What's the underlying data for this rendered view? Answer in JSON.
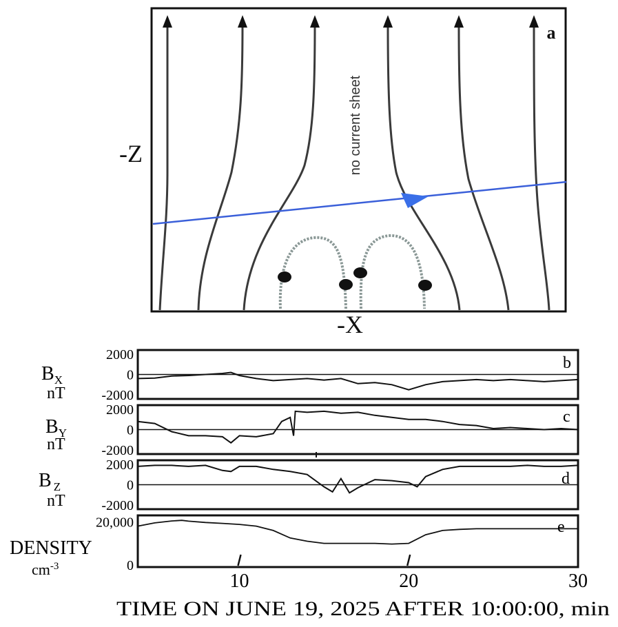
{
  "diagram": {
    "panel_letter": "a",
    "axis_vertical": "-Z",
    "axis_horizontal": "-X",
    "annotation": "no current sheet",
    "trajectory_color": "#3a5fd9"
  },
  "chart_data": [
    {
      "type": "line",
      "panel": "b",
      "ylabel_main": "B",
      "ylabel_sub": "X",
      "ylabel_unit": "nT",
      "ytick_labels": [
        "2000",
        "0",
        "-2000"
      ],
      "yticks": [
        2000,
        0,
        -2000
      ],
      "ylim": [
        -2400,
        2400
      ],
      "xlim": [
        4,
        30
      ],
      "zero_line": true,
      "series": [
        {
          "x": [
            4,
            5,
            6,
            7,
            8,
            9,
            9.5,
            10,
            11,
            12,
            13,
            14,
            15,
            16,
            17,
            18,
            19,
            20,
            21,
            22,
            23,
            24,
            25,
            26,
            27,
            28,
            29,
            30
          ],
          "values": [
            -400,
            -350,
            -150,
            -100,
            0,
            100,
            200,
            -100,
            -400,
            -600,
            -500,
            -400,
            -550,
            -400,
            -900,
            -800,
            -1000,
            -1500,
            -1000,
            -700,
            -600,
            -500,
            -600,
            -500,
            -600,
            -700,
            -600,
            -500
          ]
        }
      ]
    },
    {
      "type": "line",
      "panel": "c",
      "ylabel_main": "B",
      "ylabel_sub": "Y",
      "ylabel_unit": "nT",
      "ytick_labels": [
        "2000",
        "0",
        "-2000"
      ],
      "yticks": [
        2000,
        0,
        -2000
      ],
      "ylim": [
        -2400,
        2400
      ],
      "xlim": [
        4,
        30
      ],
      "zero_line": true,
      "series": [
        {
          "x": [
            4,
            5,
            6,
            7,
            8,
            9,
            9.5,
            10,
            11,
            12,
            12.5,
            13,
            13.2,
            13.3,
            14,
            15,
            16,
            17,
            18,
            19,
            20,
            21,
            22,
            23,
            24,
            25,
            26,
            27,
            28,
            29,
            30
          ],
          "values": [
            800,
            600,
            -200,
            -600,
            -600,
            -700,
            -1300,
            -600,
            -700,
            -400,
            800,
            1200,
            -600,
            1800,
            1700,
            1800,
            1600,
            1700,
            1400,
            1200,
            1000,
            1000,
            800,
            500,
            400,
            100,
            200,
            100,
            0,
            100,
            0
          ]
        }
      ]
    },
    {
      "type": "line",
      "panel": "d",
      "ylabel_main": "B",
      "ylabel_sub": "Z",
      "ylabel_unit": "nT",
      "ytick_labels": [
        "2000",
        "0",
        "-2000"
      ],
      "yticks": [
        2000,
        0,
        -2000
      ],
      "ylim": [
        -2400,
        2400
      ],
      "xlim": [
        4,
        30
      ],
      "zero_line": true,
      "series": [
        {
          "x": [
            4,
            5,
            6,
            7,
            8,
            9,
            9.5,
            10,
            11,
            12,
            13,
            14,
            15,
            15.5,
            16,
            16.5,
            17,
            18,
            19,
            20,
            20.5,
            21,
            22,
            23,
            24,
            25,
            26,
            27,
            28,
            29,
            30
          ],
          "values": [
            1800,
            1900,
            1900,
            1800,
            1900,
            1400,
            1300,
            1800,
            1800,
            1500,
            1300,
            1000,
            -200,
            -700,
            600,
            -800,
            -300,
            500,
            400,
            200,
            -200,
            800,
            1500,
            1800,
            1800,
            1800,
            1800,
            1900,
            1800,
            1800,
            1900
          ]
        }
      ]
    },
    {
      "type": "line",
      "panel": "e",
      "ylabel_main": "DENSITY",
      "ylabel_unit": "cm",
      "ylabel_unit_exp": "-3",
      "ytick_labels": [
        "20,000",
        "0"
      ],
      "yticks": [
        20000,
        0
      ],
      "ylim": [
        -1000,
        23000
      ],
      "xlim": [
        4,
        30
      ],
      "zero_line": false,
      "xtick_labels": [
        "10",
        "20",
        "30"
      ],
      "xticks": [
        10,
        20,
        30
      ],
      "xlabel": "TIME ON JUNE 19, 2025 AFTER 10:00:00, min",
      "series": [
        {
          "x": [
            4,
            5,
            6,
            6.6,
            7,
            8,
            9,
            10,
            11,
            12,
            13,
            14,
            15,
            16,
            17,
            18,
            19,
            20,
            21,
            22,
            23,
            24,
            25,
            26,
            27,
            28,
            29,
            30
          ],
          "values": [
            18000,
            19500,
            20400,
            20700,
            20300,
            19700,
            19300,
            18800,
            18000,
            16000,
            12500,
            11000,
            10000,
            10000,
            10000,
            10000,
            9700,
            10000,
            14000,
            16000,
            16500,
            16800,
            16800,
            16800,
            16800,
            16800,
            16800,
            16800
          ]
        }
      ]
    }
  ]
}
